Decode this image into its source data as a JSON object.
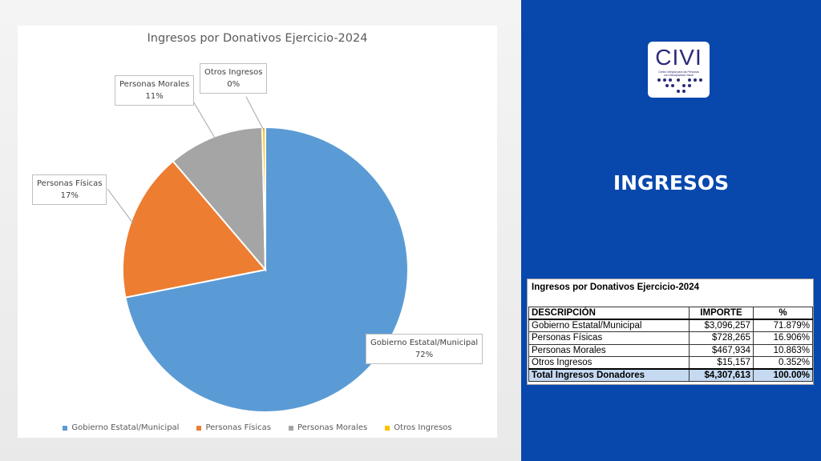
{
  "chart_data": {
    "type": "pie",
    "title": "Ingresos por Donativos  Ejercicio-2024",
    "categories": [
      "Gobierno Estatal/Municipal",
      "Personas Físicas",
      "Personas Morales",
      "Otros Ingresos"
    ],
    "values": [
      71.879,
      16.906,
      10.863,
      0.352
    ],
    "data_labels": [
      "72%",
      "17%",
      "11%",
      "0%"
    ],
    "colors": [
      "#5b9bd5",
      "#ed7d31",
      "#a5a5a5",
      "#ffc000"
    ],
    "legend_position": "bottom"
  },
  "panel": {
    "logo_text": "CIVI",
    "logo_subtext": "Centro Integral para las Personas con Discapacidad Visual",
    "section_title": "INGRESOS",
    "background_color": "#0848ad"
  },
  "table": {
    "title": "Ingresos por Donativos  Ejercicio-2024",
    "headers": [
      "DESCRIPCIÓN",
      "IMPORTE",
      "%"
    ],
    "rows": [
      [
        "Gobierno Estatal/Municipal",
        "$3,096,257",
        "71.879%"
      ],
      [
        "Personas Físicas",
        "$728,265",
        "16.906%"
      ],
      [
        "Personas Morales",
        "$467,934",
        "10.863%"
      ],
      [
        "Otros Ingresos",
        "$15,157",
        "0.352%"
      ]
    ],
    "total": [
      "Total Ingresos Donadores",
      "$4,307,613",
      "100.00%"
    ]
  }
}
